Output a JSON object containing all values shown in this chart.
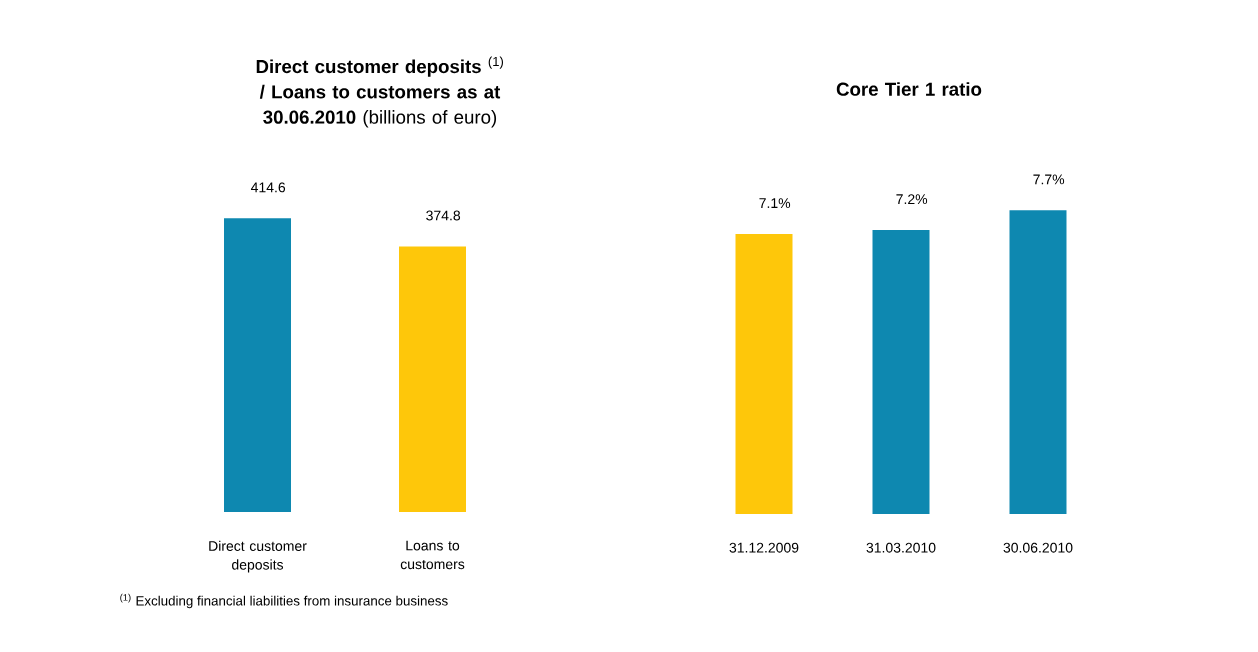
{
  "chart_data": [
    {
      "type": "bar",
      "title": "**Direct customer deposits** $^{(1)}$ **/ Loans to customers as at 30.06.2010** (billions of euro)",
      "categories": [
        "Direct customer deposits",
        "Loans to customers"
      ],
      "values": [
        414.6,
        374.8
      ],
      "colors": [
        "#0e88b0",
        "#fec70a"
      ],
      "data_labels": true,
      "annotations": [
        "$^{(1)}$ Excluding financial liabilities from insurance business"
      ]
    },
    {
      "type": "bar",
      "title": "Core Tier 1 ratio",
      "categories": [
        "31.12.2009",
        "31.03.2010",
        "30.06.2010"
      ],
      "values": [
        7.1,
        7.2,
        7.7
      ],
      "value_labels": [
        "7.1%",
        "7.2%",
        "7.7%"
      ],
      "colors": [
        "#fec70a",
        "#0e88b0",
        "#0e88b0"
      ]
    }
  ]
}
